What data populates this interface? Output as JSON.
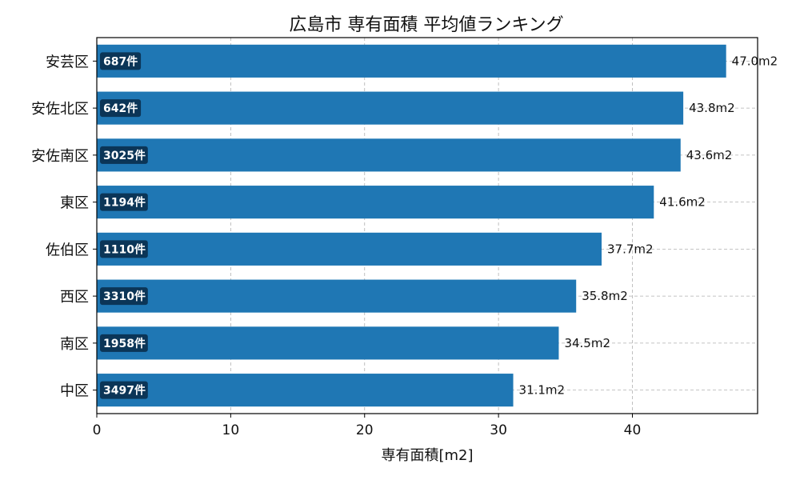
{
  "chart_data": {
    "type": "bar",
    "orientation": "horizontal",
    "title": "広島市 専有面積 平均値ランキング",
    "xlabel": "専有面積[m2]",
    "ylabel": "",
    "xlim": [
      0,
      49.35
    ],
    "xticks": [
      "0",
      "10",
      "20",
      "30",
      "40"
    ],
    "grid": "dashed",
    "bar_color": "#1f77b4",
    "badge_color": "#0b3557",
    "categories": [
      "安芸区",
      "安佐北区",
      "安佐南区",
      "東区",
      "佐伯区",
      "西区",
      "南区",
      "中区"
    ],
    "values": [
      47.0,
      43.8,
      43.6,
      41.6,
      37.7,
      35.8,
      34.5,
      31.1
    ],
    "value_labels": [
      "47.0m2",
      "43.8m2",
      "43.6m2",
      "41.6m2",
      "37.7m2",
      "35.8m2",
      "34.5m2",
      "31.1m2"
    ],
    "counts": [
      "687件",
      "642件",
      "3025件",
      "1194件",
      "1110件",
      "3310件",
      "1958件",
      "3497件"
    ]
  }
}
